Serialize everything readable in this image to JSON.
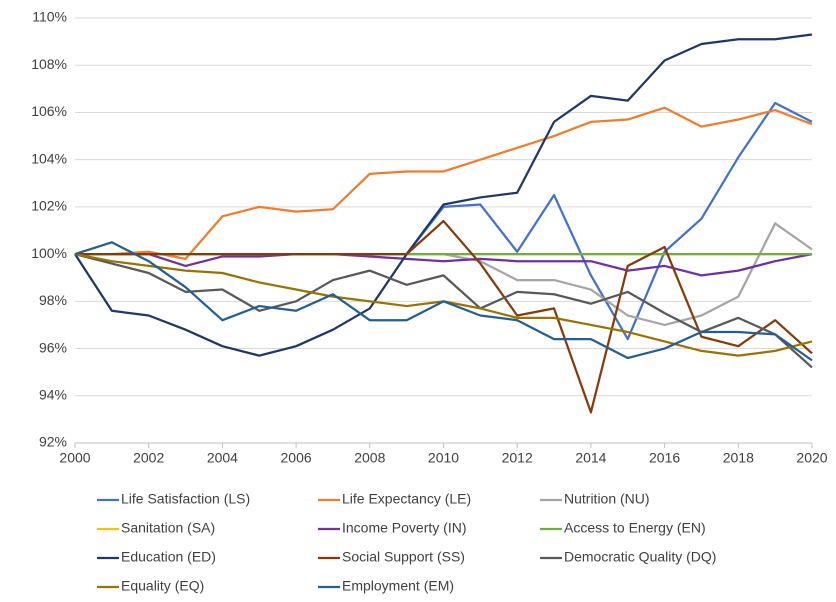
{
  "chart_data": {
    "type": "line",
    "x": [
      2000,
      2001,
      2002,
      2003,
      2004,
      2005,
      2006,
      2007,
      2008,
      2009,
      2010,
      2011,
      2012,
      2013,
      2014,
      2015,
      2016,
      2017,
      2018,
      2019,
      2020
    ],
    "xlim": [
      2000,
      2020
    ],
    "xticks": [
      2000,
      2002,
      2004,
      2006,
      2008,
      2010,
      2012,
      2014,
      2016,
      2018,
      2020
    ],
    "ylim": [
      92,
      110
    ],
    "yticks": [
      {
        "value": 92,
        "label": "92%"
      },
      {
        "value": 94,
        "label": "94%"
      },
      {
        "value": 96,
        "label": "96%"
      },
      {
        "value": 98,
        "label": "98%"
      },
      {
        "value": 100,
        "label": "100%"
      },
      {
        "value": 102,
        "label": "102%"
      },
      {
        "value": 104,
        "label": "104%"
      },
      {
        "value": 106,
        "label": "106%"
      },
      {
        "value": 108,
        "label": "108%"
      },
      {
        "value": 110,
        "label": "110%"
      }
    ],
    "grid": true,
    "legend": "bottom",
    "series": [
      {
        "name": "Life Satisfaction (LS)",
        "color": "#4472c4",
        "values": [
          100,
          100,
          100,
          100,
          100,
          100,
          100,
          100,
          100,
          100,
          102.0,
          102.1,
          100.1,
          102.5,
          99.1,
          96.4,
          100.1,
          101.5,
          104.1,
          106.4,
          105.6
        ]
      },
      {
        "name": "Life Expectancy (LE)",
        "color": "#ed7d31",
        "values": [
          100,
          100,
          100.1,
          99.8,
          101.6,
          102.0,
          101.8,
          101.9,
          103.4,
          103.5,
          103.5,
          104.0,
          104.5,
          105.0,
          105.6,
          105.7,
          106.2,
          105.4,
          105.7,
          106.1,
          105.5
        ]
      },
      {
        "name": "Nutrition (NU)",
        "color": "#a5a5a5",
        "values": [
          100,
          100,
          100,
          100,
          100,
          100,
          100,
          100,
          100,
          100,
          100,
          99.7,
          98.9,
          98.9,
          98.5,
          97.4,
          97.0,
          97.4,
          98.2,
          101.3,
          100.2
        ]
      },
      {
        "name": "Sanitation (SA)",
        "color": "#ffc000",
        "values": [
          100,
          100,
          100,
          100,
          100,
          100,
          100,
          100,
          100,
          100,
          100,
          100,
          100,
          100,
          100,
          100,
          100,
          100,
          100,
          100,
          100
        ]
      },
      {
        "name": "Income Poverty (IN)",
        "color": "#7030a0",
        "values": [
          100,
          100,
          100,
          99.5,
          99.9,
          99.9,
          100,
          100,
          99.9,
          99.8,
          99.7,
          99.8,
          99.7,
          99.7,
          99.7,
          99.3,
          99.5,
          99.1,
          99.3,
          99.7,
          100.0
        ]
      },
      {
        "name": "Access to Energy (EN)",
        "color": "#70ad47",
        "values": [
          100,
          100,
          100,
          100,
          100,
          100,
          100,
          100,
          100,
          100,
          100,
          100,
          100,
          100,
          100,
          100,
          100,
          100,
          100,
          100,
          100
        ]
      },
      {
        "name": "Education (ED)",
        "color": "#203864",
        "values": [
          100,
          97.6,
          97.4,
          96.8,
          96.1,
          95.7,
          96.1,
          96.8,
          97.7,
          100.0,
          102.1,
          102.4,
          102.6,
          105.6,
          106.7,
          106.5,
          108.2,
          108.9,
          109.1,
          109.1,
          109.3
        ]
      },
      {
        "name": "Social Support (SS)",
        "color": "#843c0c",
        "values": [
          100,
          100,
          100,
          100,
          100,
          100,
          100,
          100,
          100,
          100,
          101.4,
          99.6,
          97.4,
          97.7,
          93.3,
          99.5,
          100.3,
          96.5,
          96.1,
          97.2,
          95.8
        ]
      },
      {
        "name": "Democratic Quality (DQ)",
        "color": "#595959",
        "values": [
          100,
          99.6,
          99.2,
          98.4,
          98.5,
          97.6,
          98.0,
          98.9,
          99.3,
          98.7,
          99.1,
          97.7,
          98.4,
          98.3,
          97.9,
          98.4,
          97.5,
          96.7,
          97.3,
          96.6,
          95.2
        ]
      },
      {
        "name": "Equality (EQ)",
        "color": "#997300",
        "values": [
          100,
          99.7,
          99.5,
          99.3,
          99.2,
          98.8,
          98.5,
          98.2,
          98.0,
          97.8,
          98.0,
          97.7,
          97.3,
          97.3,
          97.0,
          96.7,
          96.3,
          95.9,
          95.7,
          95.9,
          96.3
        ]
      },
      {
        "name": "Employment (EM)",
        "color": "#255e91",
        "values": [
          100,
          100.5,
          99.7,
          98.6,
          97.2,
          97.8,
          97.6,
          98.3,
          97.2,
          97.2,
          98.0,
          97.4,
          97.2,
          96.4,
          96.4,
          95.6,
          96.0,
          96.7,
          96.7,
          96.6,
          95.5
        ]
      }
    ]
  }
}
